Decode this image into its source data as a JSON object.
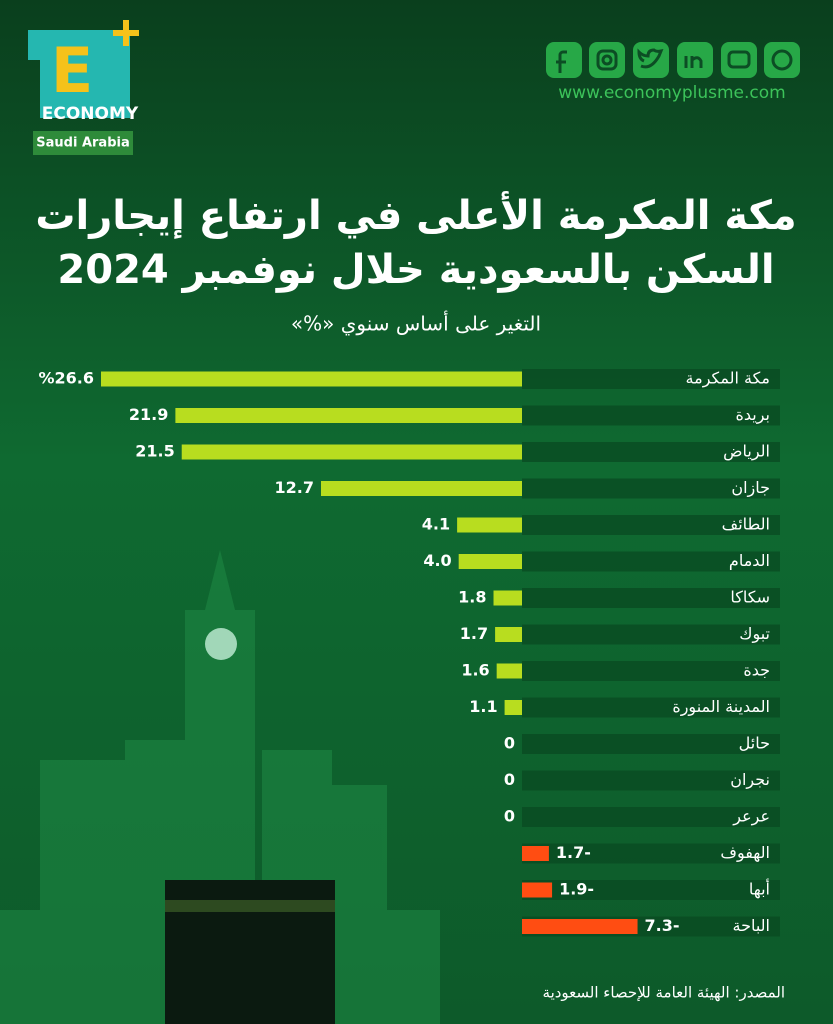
{
  "logo": {
    "letter": "E",
    "word": "ECONOMY",
    "region": "Saudi Arabia"
  },
  "website": "www.economyplusme.com",
  "chart_data": {
    "type": "bar",
    "orientation": "horizontal",
    "title": [
      "مكة المكرمة الأعلى في ارتفاع إيجارات",
      "السكن بالسعودية خلال نوفمبر 2024"
    ],
    "subtitle": "التغير على أساس سنوي «%»",
    "categories": [
      "مكة المكرمة",
      "بريدة",
      "الرياض",
      "جازان",
      "الطائف",
      "الدمام",
      "سكاكا",
      "تبوك",
      "جدة",
      "المدينة المنورة",
      "حائل",
      "نجران",
      "عرعر",
      "الهفوف",
      "أبها",
      "الباحة"
    ],
    "values": [
      26.6,
      21.9,
      21.5,
      12.7,
      4.1,
      4.0,
      1.8,
      1.7,
      1.6,
      1.1,
      0,
      0,
      0,
      -1.7,
      -1.9,
      -7.3
    ],
    "value_labels": [
      "%26.6",
      "21.9",
      "21.5",
      "12.7",
      "4.1",
      "4.0",
      "1.8",
      "1.7",
      "1.6",
      "1.1",
      "0",
      "0",
      "0",
      "1.7-",
      "1.9-",
      "7.3-"
    ],
    "colors": {
      "positive": "#b8dd1f",
      "negative": "#ff4d12"
    },
    "source": "المصدر: الهيئة العامة للإحصاء السعودية"
  }
}
